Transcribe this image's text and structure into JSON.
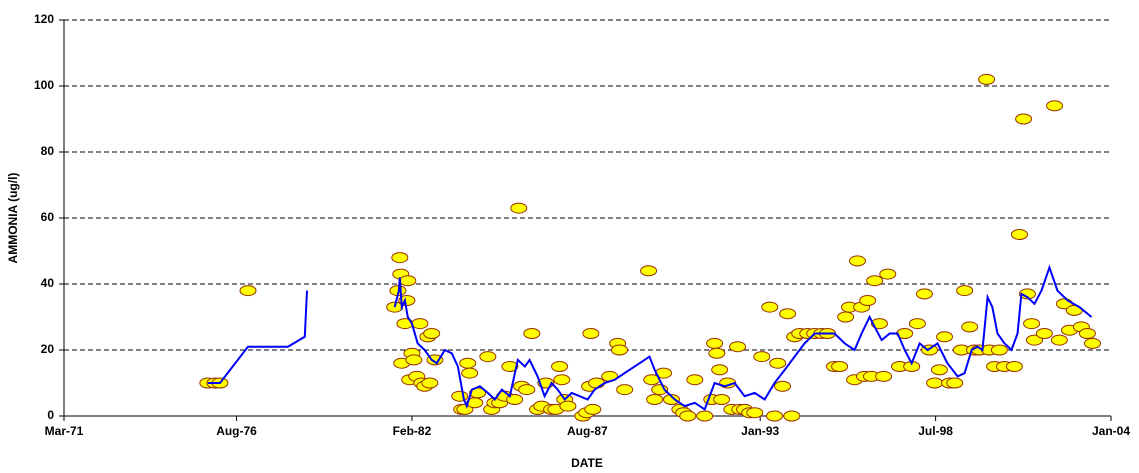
{
  "chart_data": {
    "type": "scatter",
    "x_label": "DATE",
    "y_label": "AMMONIA (ug/l)",
    "xlim": [
      1971.17,
      2004.0
    ],
    "xticks": [
      {
        "value": 1971.17,
        "label": "Mar-71"
      },
      {
        "value": 1976.58,
        "label": "Aug-76"
      },
      {
        "value": 1982.08,
        "label": "Feb-82"
      },
      {
        "value": 1987.58,
        "label": "Aug-87"
      },
      {
        "value": 1993.0,
        "label": "Jan-93"
      },
      {
        "value": 1998.5,
        "label": "Jul-98"
      },
      {
        "value": 2004.0,
        "label": "Jan-04"
      }
    ],
    "ylim": [
      0,
      120
    ],
    "yticks": [
      0,
      20,
      40,
      60,
      80,
      100,
      120
    ],
    "grid": true,
    "series": [
      {
        "mode": "markers",
        "color": "#ffff00",
        "edge_color": "#993300",
        "x": [
          1975.68,
          1975.9,
          1976.06,
          1976.94,
          1981.54,
          1981.64,
          1981.7,
          1981.73,
          1981.76,
          1981.86,
          1981.92,
          1981.95,
          1982.01,
          1982.08,
          1982.14,
          1982.23,
          1982.33,
          1982.39,
          1982.48,
          1982.58,
          1982.64,
          1982.7,
          1982.8,
          1983.58,
          1983.64,
          1983.74,
          1983.83,
          1983.89,
          1984.05,
          1984.14,
          1984.46,
          1984.58,
          1984.68,
          1984.83,
          1984.99,
          1985.15,
          1985.3,
          1985.43,
          1985.52,
          1985.68,
          1985.84,
          1986.02,
          1986.15,
          1986.28,
          1986.46,
          1986.59,
          1986.71,
          1986.78,
          1986.87,
          1986.97,
          1987.44,
          1987.56,
          1987.65,
          1987.69,
          1987.75,
          1987.87,
          1988.28,
          1988.53,
          1988.59,
          1988.75,
          1989.5,
          1989.6,
          1989.69,
          1989.85,
          1989.97,
          1990.22,
          1990.48,
          1990.6,
          1990.73,
          1990.95,
          1991.26,
          1991.48,
          1991.57,
          1991.64,
          1991.73,
          1991.79,
          1991.98,
          1992.11,
          1992.29,
          1992.36,
          1992.51,
          1992.67,
          1992.83,
          1993.05,
          1993.3,
          1993.45,
          1993.55,
          1993.7,
          1993.86,
          1993.99,
          1994.08,
          1994.24,
          1994.49,
          1994.71,
          1994.93,
          1995.11,
          1995.33,
          1995.49,
          1995.68,
          1995.8,
          1995.96,
          1996.05,
          1996.18,
          1996.27,
          1996.37,
          1996.49,
          1996.59,
          1996.74,
          1996.87,
          1997.0,
          1997.37,
          1997.53,
          1997.75,
          1997.93,
          1998.15,
          1998.31,
          1998.47,
          1998.62,
          1998.78,
          1998.94,
          1999.1,
          1999.31,
          1999.41,
          1999.57,
          1999.72,
          1999.88,
          2000.1,
          2000.19,
          2000.35,
          2000.5,
          2000.66,
          2000.97,
          2001.13,
          2001.26,
          2001.38,
          2001.51,
          2001.6,
          2001.91,
          2002.23,
          2002.38,
          2002.54,
          2002.7,
          2002.85,
          2003.07,
          2003.26,
          2003.42
        ],
        "values": [
          10,
          10,
          10,
          38,
          33,
          38,
          48,
          43,
          16,
          28,
          35,
          41,
          11,
          19,
          17,
          12,
          28,
          10,
          9,
          24,
          10,
          25,
          17,
          6,
          2,
          2,
          16,
          13,
          4,
          7,
          18,
          2,
          4,
          4,
          6,
          15,
          5,
          63,
          9,
          8,
          25,
          2,
          3,
          10,
          2,
          2,
          15,
          11,
          5,
          3,
          0,
          1,
          9,
          25,
          2,
          10,
          12,
          22,
          20,
          8,
          44,
          11,
          5,
          8,
          13,
          5,
          2,
          1,
          0,
          11,
          0,
          5,
          22,
          19,
          14,
          5,
          10,
          2,
          21,
          2,
          2,
          1,
          1,
          18,
          33,
          0,
          16,
          9,
          31,
          0,
          24,
          25,
          25,
          25,
          25,
          25,
          15,
          15,
          30,
          33,
          11,
          47,
          33,
          12,
          35,
          12,
          41,
          28,
          12,
          43,
          15,
          25,
          15,
          28,
          37,
          20,
          10,
          14,
          24,
          10,
          10,
          20,
          38,
          27,
          20,
          20,
          102,
          20,
          15,
          20,
          15,
          15,
          55,
          90,
          37,
          28,
          23,
          25,
          94,
          23,
          34,
          26,
          32,
          27,
          25,
          22
        ]
      },
      {
        "mode": "lines",
        "color": "#0000ff",
        "x": [
          1975.68,
          1976.06,
          1976.94,
          1978.19,
          1978.72,
          1978.79,
          null,
          1981.54,
          1981.67,
          1981.7,
          1981.76,
          1981.86,
          1981.95,
          1982.08,
          1982.26,
          1982.48,
          1982.7,
          1982.86,
          1983.11,
          1983.33,
          1983.52,
          1983.71,
          1983.8,
          1983.96,
          1984.21,
          1984.46,
          1984.68,
          1984.9,
          1985.15,
          1985.4,
          1985.62,
          1985.77,
          1986.02,
          1986.24,
          1986.46,
          1986.65,
          1986.87,
          1987.09,
          1987.34,
          1987.59,
          1987.81,
          1988.12,
          1988.44,
          1988.75,
          1989.22,
          1989.53,
          1989.69,
          1990.0,
          1990.32,
          1990.63,
          1990.95,
          1991.26,
          1991.57,
          1991.89,
          1992.2,
          1992.51,
          1992.83,
          1993.14,
          1993.45,
          1993.77,
          1994.08,
          1994.39,
          1994.71,
          1995.02,
          1995.33,
          1995.65,
          1995.96,
          1996.18,
          1996.43,
          1996.59,
          1996.81,
          1997.06,
          1997.31,
          1997.53,
          1997.75,
          1998.0,
          1998.25,
          1998.56,
          1998.87,
          1999.19,
          1999.41,
          1999.63,
          1999.81,
          1999.97,
          2000.13,
          2000.28,
          2000.44,
          2000.66,
          2000.88,
          2001.07,
          2001.19,
          2001.38,
          2001.6,
          2001.82,
          2002.07,
          2002.32,
          2002.64,
          2003.01,
          2003.39
        ],
        "values": [
          10,
          10,
          21,
          21,
          24,
          38,
          null,
          33,
          38,
          42,
          33,
          35,
          30,
          28,
          22,
          20,
          17,
          16,
          20,
          19,
          15,
          5,
          3,
          8,
          9,
          7,
          5,
          8,
          6,
          17,
          15,
          17,
          12,
          6,
          10,
          8,
          5,
          7,
          6,
          5,
          8,
          10,
          11,
          13,
          16,
          18,
          14,
          8,
          5,
          3,
          4,
          2,
          10,
          9,
          10,
          6,
          7,
          5,
          10,
          14,
          18,
          22,
          25,
          25,
          25,
          22,
          20,
          25,
          30,
          27,
          23,
          25,
          25,
          20,
          16,
          22,
          20,
          22,
          16,
          12,
          13,
          20,
          21,
          20,
          36,
          33,
          25,
          22,
          20,
          25,
          37,
          36,
          34,
          38,
          45,
          38,
          35,
          33,
          30
        ]
      }
    ]
  }
}
